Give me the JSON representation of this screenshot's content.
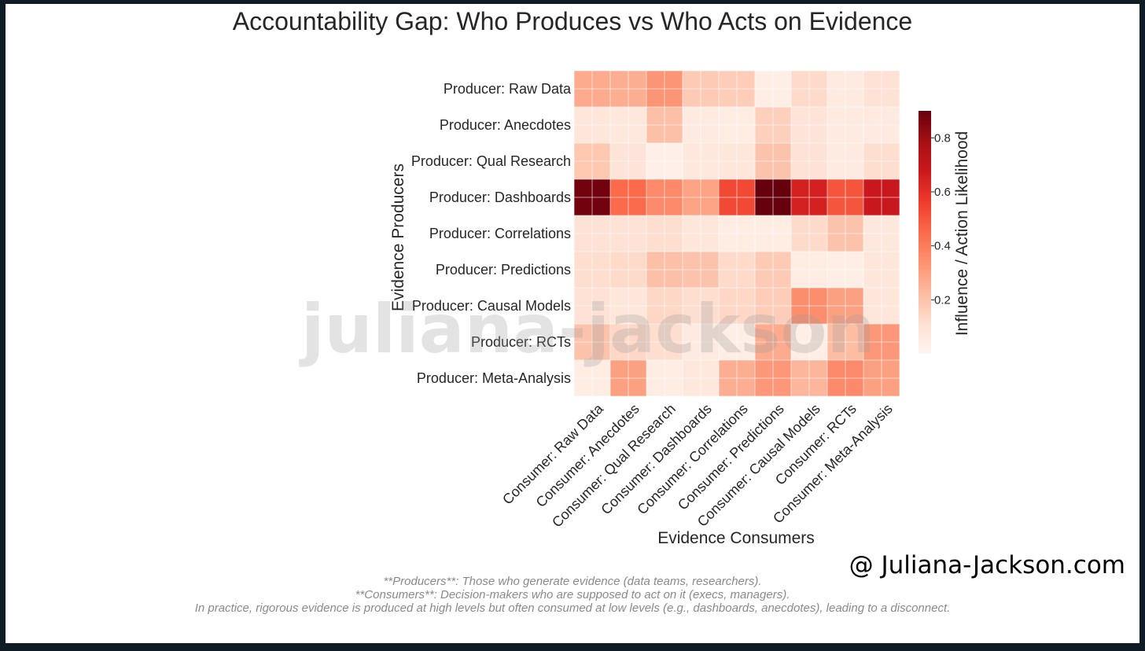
{
  "chart_data": {
    "type": "heatmap",
    "title": "Accountability Gap: Who Produces vs Who Acts on Evidence",
    "ylabel": "Evidence Producers",
    "xlabel": "Evidence Consumers",
    "rows": [
      "Producer: Raw Data",
      "Producer: Anecdotes",
      "Producer: Qual Research",
      "Producer: Dashboards",
      "Producer: Correlations",
      "Producer: Predictions",
      "Producer: Causal Models",
      "Producer: RCTs",
      "Producer: Meta-Analysis"
    ],
    "columns": [
      "Consumer: Raw Data",
      "Consumer: Anecdotes",
      "Consumer: Qual Research",
      "Consumer: Dashboards",
      "Consumer: Correlations",
      "Consumer: Predictions",
      "Consumer: Causal Models",
      "Consumer: RCTs",
      "Consumer: Meta-Analysis"
    ],
    "values": [
      [
        0.27,
        0.26,
        0.33,
        0.18,
        0.17,
        0.04,
        0.13,
        0.06,
        0.1
      ],
      [
        0.08,
        0.07,
        0.21,
        0.06,
        0.05,
        0.16,
        0.09,
        0.06,
        0.06
      ],
      [
        0.19,
        0.09,
        0.03,
        0.07,
        0.08,
        0.2,
        0.1,
        0.06,
        0.12
      ],
      [
        0.88,
        0.45,
        0.36,
        0.29,
        0.53,
        0.9,
        0.65,
        0.5,
        0.68
      ],
      [
        0.1,
        0.1,
        0.12,
        0.08,
        0.05,
        0.05,
        0.13,
        0.2,
        0.07
      ],
      [
        0.12,
        0.13,
        0.21,
        0.2,
        0.13,
        0.18,
        0.05,
        0.04,
        0.08
      ],
      [
        0.1,
        0.08,
        0.14,
        0.12,
        0.14,
        0.17,
        0.35,
        0.3,
        0.08
      ],
      [
        0.2,
        0.14,
        0.12,
        0.06,
        0.04,
        0.27,
        0.04,
        0.22,
        0.32
      ],
      [
        0.05,
        0.3,
        0.05,
        0.07,
        0.26,
        0.32,
        0.24,
        0.36,
        0.3
      ]
    ],
    "vmin": 0,
    "vmax": 0.9,
    "colormap": "Reds",
    "colorbar_label": "Influence / Action Likelihood",
    "colorbar_ticks": [
      "0.2",
      "0.4",
      "0.6",
      "0.8"
    ],
    "grid": true
  },
  "watermark": "juliana-jackson",
  "brand": "@ Juliana-Jackson.com",
  "caption": [
    "**Producers**: Those who generate evidence (data teams, researchers).",
    "**Consumers**: Decision-makers who are supposed to act on it (execs, managers).",
    "In practice, rigorous evidence is produced at high levels but often consumed at low levels (e.g., dashboards, anecdotes), leading to a disconnect."
  ]
}
